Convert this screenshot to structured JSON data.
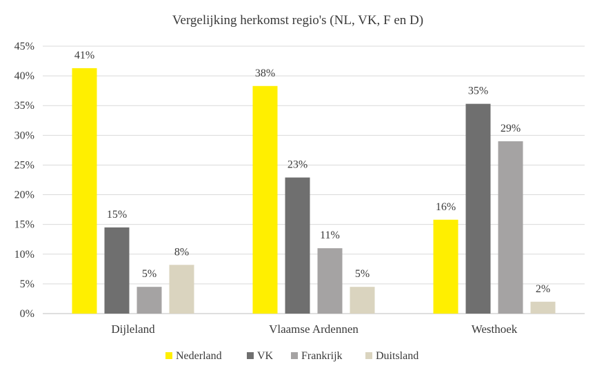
{
  "chart_data": {
    "type": "bar",
    "title": "Vergelijking herkomst regio's (NL, VK, F en D)",
    "xlabel": "",
    "ylabel": "",
    "categories": [
      "Dijleland",
      "Vlaamse Ardennen",
      "Westhoek"
    ],
    "series": [
      {
        "name": "Nederland",
        "color": "#ffef00",
        "values": [
          41.3,
          38.3,
          15.8
        ],
        "labels": [
          "41%",
          "38%",
          "16%"
        ]
      },
      {
        "name": "VK",
        "color": "#6f6f6f",
        "values": [
          14.5,
          22.9,
          35.3
        ],
        "labels": [
          "15%",
          "23%",
          "35%"
        ]
      },
      {
        "name": "Frankrijk",
        "color": "#a5a3a3",
        "values": [
          4.5,
          11.0,
          29.0
        ],
        "labels": [
          "5%",
          "11%",
          "29%"
        ]
      },
      {
        "name": "Duitsland",
        "color": "#dad4bf",
        "values": [
          8.2,
          4.5,
          2.0
        ],
        "labels": [
          "8%",
          "5%",
          "2%"
        ]
      }
    ],
    "ylim": [
      0,
      45
    ],
    "yticks": [
      0,
      5,
      10,
      15,
      20,
      25,
      30,
      35,
      40,
      45
    ],
    "ytick_labels": [
      "0%",
      "5%",
      "10%",
      "15%",
      "20%",
      "25%",
      "30%",
      "35%",
      "40%",
      "45%"
    ],
    "grid": true,
    "legend_position": "bottom"
  }
}
